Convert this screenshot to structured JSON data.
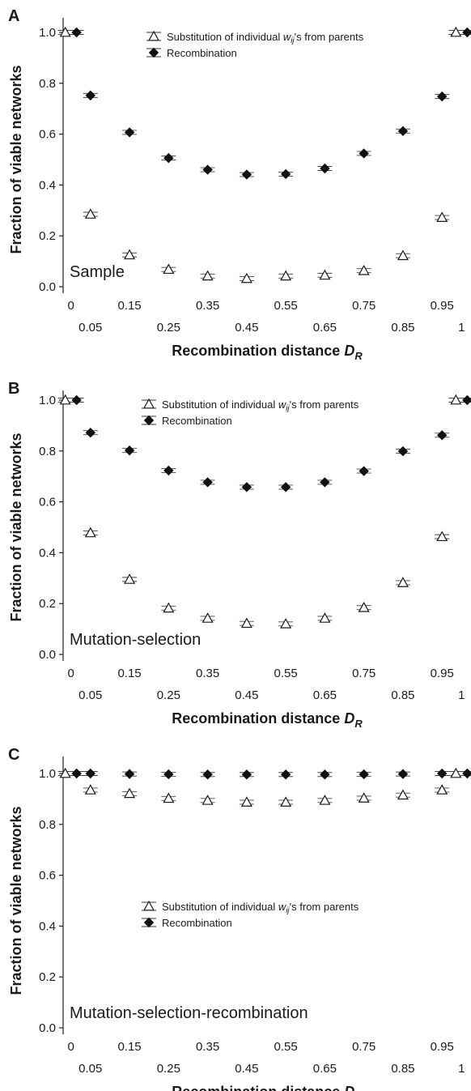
{
  "chart_data": [
    {
      "type": "scatter",
      "panel": "A",
      "label": "Sample",
      "xlabel": "Recombination distance",
      "xlabel_symbol": "D",
      "xlabel_subscript": "R",
      "ylabel": "Fraction of viable networks",
      "ylim": [
        0,
        1.0
      ],
      "yticks": [
        "0.0",
        "0.2",
        "0.4",
        "0.6",
        "0.8",
        "1.0"
      ],
      "xticks_top": [
        "0",
        "0.15",
        "0.35",
        "0.55",
        "0.75",
        "0.95"
      ],
      "xticks_bottom": [
        "0.05",
        "0.25",
        "0.45",
        "0.65",
        "0.85",
        "1"
      ],
      "legend_position": "top-center",
      "series": [
        {
          "name": "Substitution of individual w_ij's from parents",
          "legend_pre": "Substitution of individual ",
          "legend_sym": "w",
          "legend_sub": "ij",
          "legend_post": "'s from parents",
          "marker": "open-triangle",
          "x": [
            0,
            0.05,
            0.15,
            0.25,
            0.35,
            0.45,
            0.55,
            0.65,
            0.75,
            0.85,
            0.95,
            1
          ],
          "y": [
            1.0,
            0.285,
            0.125,
            0.068,
            0.042,
            0.032,
            0.042,
            0.045,
            0.063,
            0.122,
            0.272,
            1.0
          ]
        },
        {
          "name": "Recombination",
          "legend_pre": "Recombination",
          "marker": "filled-diamond",
          "x": [
            0,
            0.05,
            0.15,
            0.25,
            0.35,
            0.45,
            0.55,
            0.65,
            0.75,
            0.85,
            0.95,
            1
          ],
          "y": [
            1.0,
            0.752,
            0.607,
            0.506,
            0.46,
            0.441,
            0.443,
            0.465,
            0.524,
            0.612,
            0.748,
            1.0
          ]
        }
      ]
    },
    {
      "type": "scatter",
      "panel": "B",
      "label": "Mutation-selection",
      "xlabel": "Recombination distance",
      "xlabel_symbol": "D",
      "xlabel_subscript": "R",
      "ylabel": "Fraction of viable networks",
      "ylim": [
        0,
        1.0
      ],
      "yticks": [
        "0.0",
        "0.2",
        "0.4",
        "0.6",
        "0.8",
        "1.0"
      ],
      "xticks_top": [
        "0",
        "0.15",
        "0.35",
        "0.55",
        "0.75",
        "0.95"
      ],
      "xticks_bottom": [
        "0.05",
        "0.25",
        "0.45",
        "0.65",
        "0.85",
        "1"
      ],
      "legend_position": "top-center",
      "series": [
        {
          "name": "Substitution of individual w_ij's from parents",
          "legend_pre": "Substitution of individual ",
          "legend_sym": "w",
          "legend_sub": "ij",
          "legend_post": "'s from parents",
          "marker": "open-triangle",
          "x": [
            0,
            0.05,
            0.15,
            0.25,
            0.35,
            0.45,
            0.55,
            0.65,
            0.75,
            0.85,
            0.95,
            1
          ],
          "y": [
            1.0,
            0.478,
            0.295,
            0.182,
            0.142,
            0.122,
            0.12,
            0.142,
            0.184,
            0.282,
            0.463,
            1.0
          ]
        },
        {
          "name": "Recombination",
          "legend_pre": "Recombination",
          "marker": "filled-diamond",
          "x": [
            0,
            0.05,
            0.15,
            0.25,
            0.35,
            0.45,
            0.55,
            0.65,
            0.75,
            0.85,
            0.95,
            1
          ],
          "y": [
            1.0,
            0.872,
            0.802,
            0.723,
            0.677,
            0.658,
            0.658,
            0.677,
            0.721,
            0.799,
            0.862,
            1.0
          ]
        }
      ]
    },
    {
      "type": "scatter",
      "panel": "C",
      "label": "Mutation-selection-recombination",
      "xlabel": "Recombination distance",
      "xlabel_symbol": "D",
      "xlabel_subscript": "R",
      "ylabel": "Fraction of viable networks",
      "ylim": [
        0,
        1.0
      ],
      "yticks": [
        "0.0",
        "0.2",
        "0.4",
        "0.6",
        "0.8",
        "1.0"
      ],
      "xticks_top": [
        "0",
        "0.15",
        "0.35",
        "0.55",
        "0.75",
        "0.95"
      ],
      "xticks_bottom": [
        "0.05",
        "0.25",
        "0.45",
        "0.65",
        "0.85",
        "1"
      ],
      "legend_position": "center",
      "series": [
        {
          "name": "Substitution of individual w_ij's from parents",
          "legend_pre": "Substitution of individual ",
          "legend_sym": "w",
          "legend_sub": "ij",
          "legend_post": "'s from parents",
          "marker": "open-triangle",
          "x": [
            0,
            0.05,
            0.15,
            0.25,
            0.35,
            0.45,
            0.55,
            0.65,
            0.75,
            0.85,
            0.95,
            1
          ],
          "y": [
            1.0,
            0.935,
            0.921,
            0.902,
            0.894,
            0.887,
            0.887,
            0.894,
            0.903,
            0.915,
            0.935,
            1.0
          ]
        },
        {
          "name": "Recombination",
          "legend_pre": "Recombination",
          "marker": "filled-diamond",
          "x": [
            0,
            0.05,
            0.15,
            0.25,
            0.35,
            0.45,
            0.55,
            0.65,
            0.75,
            0.85,
            0.95,
            1
          ],
          "y": [
            1.0,
            1.0,
            0.998,
            0.997,
            0.996,
            0.996,
            0.996,
            0.996,
            0.997,
            0.998,
            1.0,
            1.0
          ]
        }
      ]
    }
  ]
}
